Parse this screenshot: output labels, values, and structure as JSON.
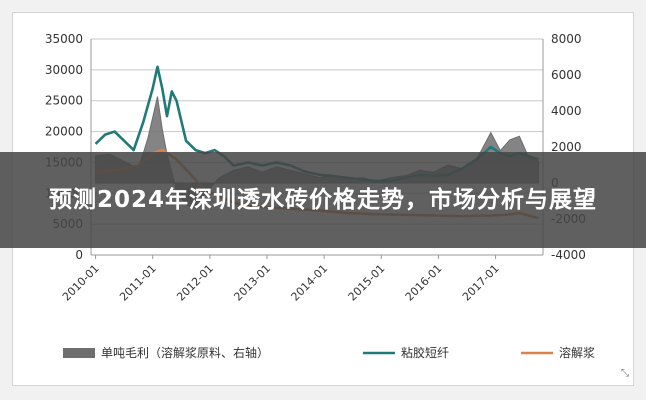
{
  "overlay": {
    "title": "预测2024年深圳透水砖价格走势，市场分析与展望"
  },
  "chart_data": {
    "type": "line",
    "title": "",
    "left_axis": {
      "ticks": [
        0,
        5000,
        10000,
        15000,
        20000,
        25000,
        30000,
        35000
      ],
      "ylim": [
        0,
        35000
      ]
    },
    "right_axis": {
      "ticks": [
        -4000,
        -2000,
        0,
        2000,
        4000,
        6000,
        8000
      ],
      "ylim": [
        -4000,
        8000
      ]
    },
    "x_ticks": [
      "2010-01",
      "2011-01",
      "2012-01",
      "2013-01",
      "2014-01",
      "2015-01",
      "2016-01",
      "2017-01"
    ],
    "grid": "horizontal",
    "legend_position": "bottom",
    "series": [
      {
        "name": "单吨毛利（溶解浆原料、右轴）",
        "type": "area",
        "axis": "right",
        "color": "#6e6e6e",
        "points": [
          [
            "2010-01",
            1500
          ],
          [
            "2010-04",
            1600
          ],
          [
            "2010-07",
            1200
          ],
          [
            "2010-10",
            800
          ],
          [
            "2010-12",
            2500
          ],
          [
            "2011-02",
            4800
          ],
          [
            "2011-03",
            3000
          ],
          [
            "2011-04",
            1600
          ],
          [
            "2011-06",
            -400
          ],
          [
            "2011-08",
            -1200
          ],
          [
            "2011-10",
            -1400
          ],
          [
            "2011-12",
            -600
          ],
          [
            "2012-03",
            300
          ],
          [
            "2012-06",
            700
          ],
          [
            "2012-09",
            900
          ],
          [
            "2012-12",
            600
          ],
          [
            "2013-03",
            900
          ],
          [
            "2013-06",
            700
          ],
          [
            "2013-09",
            500
          ],
          [
            "2013-12",
            300
          ],
          [
            "2014-03",
            400
          ],
          [
            "2014-06",
            200
          ],
          [
            "2014-09",
            300
          ],
          [
            "2014-12",
            100
          ],
          [
            "2015-03",
            300
          ],
          [
            "2015-06",
            400
          ],
          [
            "2015-09",
            700
          ],
          [
            "2015-12",
            600
          ],
          [
            "2016-03",
            1000
          ],
          [
            "2016-06",
            800
          ],
          [
            "2016-09",
            1300
          ],
          [
            "2016-12",
            2800
          ],
          [
            "2017-02",
            1800
          ],
          [
            "2017-04",
            2400
          ],
          [
            "2017-06",
            2600
          ],
          [
            "2017-08",
            1400
          ],
          [
            "2017-10",
            1200
          ]
        ]
      },
      {
        "name": "粘胶短纤",
        "type": "line",
        "axis": "left",
        "color": "#1f7a78",
        "points": [
          [
            "2010-01",
            18000
          ],
          [
            "2010-03",
            19500
          ],
          [
            "2010-05",
            20000
          ],
          [
            "2010-07",
            18500
          ],
          [
            "2010-09",
            17000
          ],
          [
            "2010-11",
            21500
          ],
          [
            "2011-01",
            27000
          ],
          [
            "2011-02",
            30500
          ],
          [
            "2011-03",
            27000
          ],
          [
            "2011-04",
            22500
          ],
          [
            "2011-05",
            26500
          ],
          [
            "2011-06",
            25000
          ],
          [
            "2011-08",
            18500
          ],
          [
            "2011-10",
            17000
          ],
          [
            "2011-12",
            16500
          ],
          [
            "2012-02",
            17000
          ],
          [
            "2012-04",
            16000
          ],
          [
            "2012-06",
            14500
          ],
          [
            "2012-09",
            15000
          ],
          [
            "2012-12",
            14500
          ],
          [
            "2013-03",
            15000
          ],
          [
            "2013-06",
            14500
          ],
          [
            "2013-09",
            13500
          ],
          [
            "2013-12",
            13000
          ],
          [
            "2014-03",
            12800
          ],
          [
            "2014-06",
            12500
          ],
          [
            "2014-09",
            12200
          ],
          [
            "2014-12",
            12000
          ],
          [
            "2015-03",
            12000
          ],
          [
            "2015-06",
            12500
          ],
          [
            "2015-09",
            13000
          ],
          [
            "2015-12",
            12800
          ],
          [
            "2016-03",
            13000
          ],
          [
            "2016-06",
            14000
          ],
          [
            "2016-09",
            15500
          ],
          [
            "2016-12",
            17500
          ],
          [
            "2017-02",
            16500
          ],
          [
            "2017-04",
            16000
          ],
          [
            "2017-06",
            16500
          ],
          [
            "2017-08",
            16000
          ],
          [
            "2017-10",
            15500
          ]
        ]
      },
      {
        "name": "溶解浆",
        "type": "line",
        "axis": "left",
        "color": "#d9824a",
        "points": [
          [
            "2010-01",
            13500
          ],
          [
            "2010-06",
            13800
          ],
          [
            "2010-10",
            14500
          ],
          [
            "2011-01",
            16500
          ],
          [
            "2011-03",
            17000
          ],
          [
            "2011-06",
            15500
          ],
          [
            "2011-09",
            13000
          ],
          [
            "2011-12",
            10500
          ],
          [
            "2012-03",
            9500
          ],
          [
            "2012-06",
            8500
          ],
          [
            "2012-09",
            8000
          ],
          [
            "2012-12",
            7800
          ],
          [
            "2013-06",
            7500
          ],
          [
            "2013-12",
            7200
          ],
          [
            "2014-06",
            6800
          ],
          [
            "2014-12",
            6600
          ],
          [
            "2015-06",
            6500
          ],
          [
            "2015-12",
            6400
          ],
          [
            "2016-06",
            6300
          ],
          [
            "2016-12",
            6400
          ],
          [
            "2017-03",
            6500
          ],
          [
            "2017-06",
            6800
          ],
          [
            "2017-10",
            6000
          ]
        ]
      }
    ]
  },
  "colors": {
    "banner_bg": "#464646",
    "gridline": "#c8c8c8"
  }
}
